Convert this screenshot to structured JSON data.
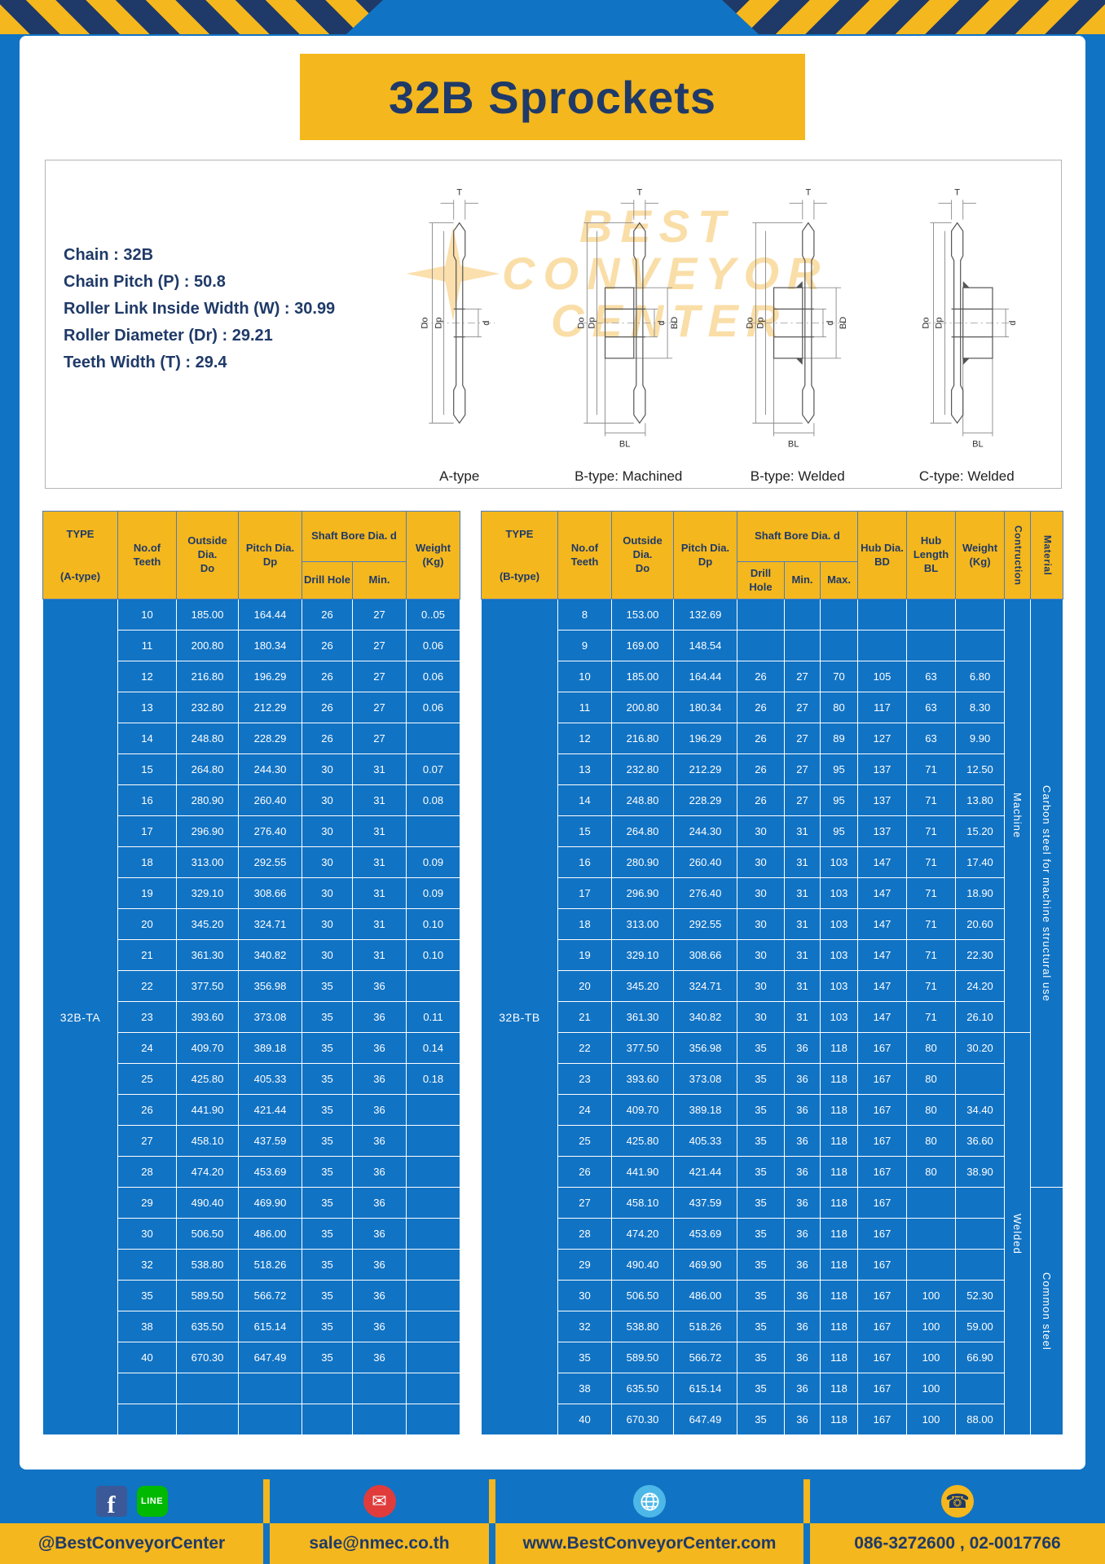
{
  "colors": {
    "blue": "#1173c4",
    "yellow": "#f4b71d",
    "navy": "#1f3a68"
  },
  "page": {
    "title": "32B Sprockets"
  },
  "specs": {
    "lines": [
      "Chain : 32B",
      "Chain Pitch (P) : 50.8",
      "Roller Link Inside Width (W) : 30.99",
      "Roller Diameter (Dr) : 29.21",
      "Teeth Width (T) : 29.4"
    ]
  },
  "diagram": {
    "labels": [
      "A-type",
      "B-type: Machined",
      "B-type: Welded",
      "C-type: Welded"
    ],
    "watermark": [
      "BEST",
      "CONVEYOR",
      "CENTER"
    ]
  },
  "dims": {
    "T": "T",
    "Do": "Do",
    "Dp": "Dp",
    "d": "d",
    "BD": "BD",
    "BL": "BL"
  },
  "table_a": {
    "type_label": "32B-TA",
    "headers": {
      "type": "TYPE\n\n(A-type)",
      "teeth": "No.of\nTeeth",
      "outside": "Outside\nDia.\nDo",
      "pitch": "Pitch Dia.\nDp",
      "shaft": "Shaft Bore Dia. d",
      "drill": "Drill Hole",
      "min": "Min.",
      "weight": "Weight\n(Kg)"
    },
    "rows": [
      [
        "10",
        "185.00",
        "164.44",
        "26",
        "27",
        "0..05"
      ],
      [
        "11",
        "200.80",
        "180.34",
        "26",
        "27",
        "0.06"
      ],
      [
        "12",
        "216.80",
        "196.29",
        "26",
        "27",
        "0.06"
      ],
      [
        "13",
        "232.80",
        "212.29",
        "26",
        "27",
        "0.06"
      ],
      [
        "14",
        "248.80",
        "228.29",
        "26",
        "27",
        ""
      ],
      [
        "15",
        "264.80",
        "244.30",
        "30",
        "31",
        "0.07"
      ],
      [
        "16",
        "280.90",
        "260.40",
        "30",
        "31",
        "0.08"
      ],
      [
        "17",
        "296.90",
        "276.40",
        "30",
        "31",
        ""
      ],
      [
        "18",
        "313.00",
        "292.55",
        "30",
        "31",
        "0.09"
      ],
      [
        "19",
        "329.10",
        "308.66",
        "30",
        "31",
        "0.09"
      ],
      [
        "20",
        "345.20",
        "324.71",
        "30",
        "31",
        "0.10"
      ],
      [
        "21",
        "361.30",
        "340.82",
        "30",
        "31",
        "0.10"
      ],
      [
        "22",
        "377.50",
        "356.98",
        "35",
        "36",
        ""
      ],
      [
        "23",
        "393.60",
        "373.08",
        "35",
        "36",
        "0.11"
      ],
      [
        "24",
        "409.70",
        "389.18",
        "35",
        "36",
        "0.14"
      ],
      [
        "25",
        "425.80",
        "405.33",
        "35",
        "36",
        "0.18"
      ],
      [
        "26",
        "441.90",
        "421.44",
        "35",
        "36",
        ""
      ],
      [
        "27",
        "458.10",
        "437.59",
        "35",
        "36",
        ""
      ],
      [
        "28",
        "474.20",
        "453.69",
        "35",
        "36",
        ""
      ],
      [
        "29",
        "490.40",
        "469.90",
        "35",
        "36",
        ""
      ],
      [
        "30",
        "506.50",
        "486.00",
        "35",
        "36",
        ""
      ],
      [
        "32",
        "538.80",
        "518.26",
        "35",
        "36",
        ""
      ],
      [
        "35",
        "589.50",
        "566.72",
        "35",
        "36",
        ""
      ],
      [
        "38",
        "635.50",
        "615.14",
        "35",
        "36",
        ""
      ],
      [
        "40",
        "670.30",
        "647.49",
        "35",
        "36",
        ""
      ],
      [
        "",
        "",
        "",
        "",
        "",
        ""
      ],
      [
        "",
        "",
        "",
        "",
        "",
        ""
      ]
    ]
  },
  "table_b": {
    "type_label": "32B-TB",
    "headers": {
      "type": "TYPE\n\n(B-type)",
      "teeth": "No.of\nTeeth",
      "outside": "Outside\nDia.\nDo",
      "pitch": "Pitch Dia.\nDp",
      "shaft": "Shaft Bore Dia. d",
      "drill": "Drill Hole",
      "min": "Min.",
      "max": "Max.",
      "hub_dia": "Hub Dia.\nBD",
      "hub_len": "Hub\nLength\nBL",
      "weight": "Weight\n(Kg)",
      "construction": "Contruction",
      "material": "Material"
    },
    "construction": [
      {
        "label": "Machine",
        "rows": 14
      },
      {
        "label": "Welded",
        "rows": 13
      }
    ],
    "material": [
      {
        "label": "Carbon steel for machine structural use",
        "rows": 19
      },
      {
        "label": "Common steel",
        "rows": 8
      }
    ],
    "rows": [
      [
        "8",
        "153.00",
        "132.69",
        "",
        "",
        "",
        "",
        "",
        ""
      ],
      [
        "9",
        "169.00",
        "148.54",
        "",
        "",
        "",
        "",
        "",
        ""
      ],
      [
        "10",
        "185.00",
        "164.44",
        "26",
        "27",
        "70",
        "105",
        "63",
        "6.80"
      ],
      [
        "11",
        "200.80",
        "180.34",
        "26",
        "27",
        "80",
        "117",
        "63",
        "8.30"
      ],
      [
        "12",
        "216.80",
        "196.29",
        "26",
        "27",
        "89",
        "127",
        "63",
        "9.90"
      ],
      [
        "13",
        "232.80",
        "212.29",
        "26",
        "27",
        "95",
        "137",
        "71",
        "12.50"
      ],
      [
        "14",
        "248.80",
        "228.29",
        "26",
        "27",
        "95",
        "137",
        "71",
        "13.80"
      ],
      [
        "15",
        "264.80",
        "244.30",
        "30",
        "31",
        "95",
        "137",
        "71",
        "15.20"
      ],
      [
        "16",
        "280.90",
        "260.40",
        "30",
        "31",
        "103",
        "147",
        "71",
        "17.40"
      ],
      [
        "17",
        "296.90",
        "276.40",
        "30",
        "31",
        "103",
        "147",
        "71",
        "18.90"
      ],
      [
        "18",
        "313.00",
        "292.55",
        "30",
        "31",
        "103",
        "147",
        "71",
        "20.60"
      ],
      [
        "19",
        "329.10",
        "308.66",
        "30",
        "31",
        "103",
        "147",
        "71",
        "22.30"
      ],
      [
        "20",
        "345.20",
        "324.71",
        "30",
        "31",
        "103",
        "147",
        "71",
        "24.20"
      ],
      [
        "21",
        "361.30",
        "340.82",
        "30",
        "31",
        "103",
        "147",
        "71",
        "26.10"
      ],
      [
        "22",
        "377.50",
        "356.98",
        "35",
        "36",
        "118",
        "167",
        "80",
        "30.20"
      ],
      [
        "23",
        "393.60",
        "373.08",
        "35",
        "36",
        "118",
        "167",
        "80",
        ""
      ],
      [
        "24",
        "409.70",
        "389.18",
        "35",
        "36",
        "118",
        "167",
        "80",
        "34.40"
      ],
      [
        "25",
        "425.80",
        "405.33",
        "35",
        "36",
        "118",
        "167",
        "80",
        "36.60"
      ],
      [
        "26",
        "441.90",
        "421.44",
        "35",
        "36",
        "118",
        "167",
        "80",
        "38.90"
      ],
      [
        "27",
        "458.10",
        "437.59",
        "35",
        "36",
        "118",
        "167",
        "",
        ""
      ],
      [
        "28",
        "474.20",
        "453.69",
        "35",
        "36",
        "118",
        "167",
        "",
        ""
      ],
      [
        "29",
        "490.40",
        "469.90",
        "35",
        "36",
        "118",
        "167",
        "",
        ""
      ],
      [
        "30",
        "506.50",
        "486.00",
        "35",
        "36",
        "118",
        "167",
        "100",
        "52.30"
      ],
      [
        "32",
        "538.80",
        "518.26",
        "35",
        "36",
        "118",
        "167",
        "100",
        "59.00"
      ],
      [
        "35",
        "589.50",
        "566.72",
        "35",
        "36",
        "118",
        "167",
        "100",
        "66.90"
      ],
      [
        "38",
        "635.50",
        "615.14",
        "35",
        "36",
        "118",
        "167",
        "100",
        ""
      ],
      [
        "40",
        "670.30",
        "647.49",
        "35",
        "36",
        "118",
        "167",
        "100",
        "88.00"
      ]
    ]
  },
  "footer": {
    "sections": [
      {
        "label": "@BestConveyorCenter"
      },
      {
        "label": "sale@nmec.co.th"
      },
      {
        "label": "www.BestConveyorCenter.com"
      },
      {
        "label": "086-3272600 , 02-0017766"
      }
    ],
    "facebook_letter": "f",
    "line_icon_text": "LINE",
    "mail_glyph": "✉",
    "phone_glyph": "☎"
  }
}
